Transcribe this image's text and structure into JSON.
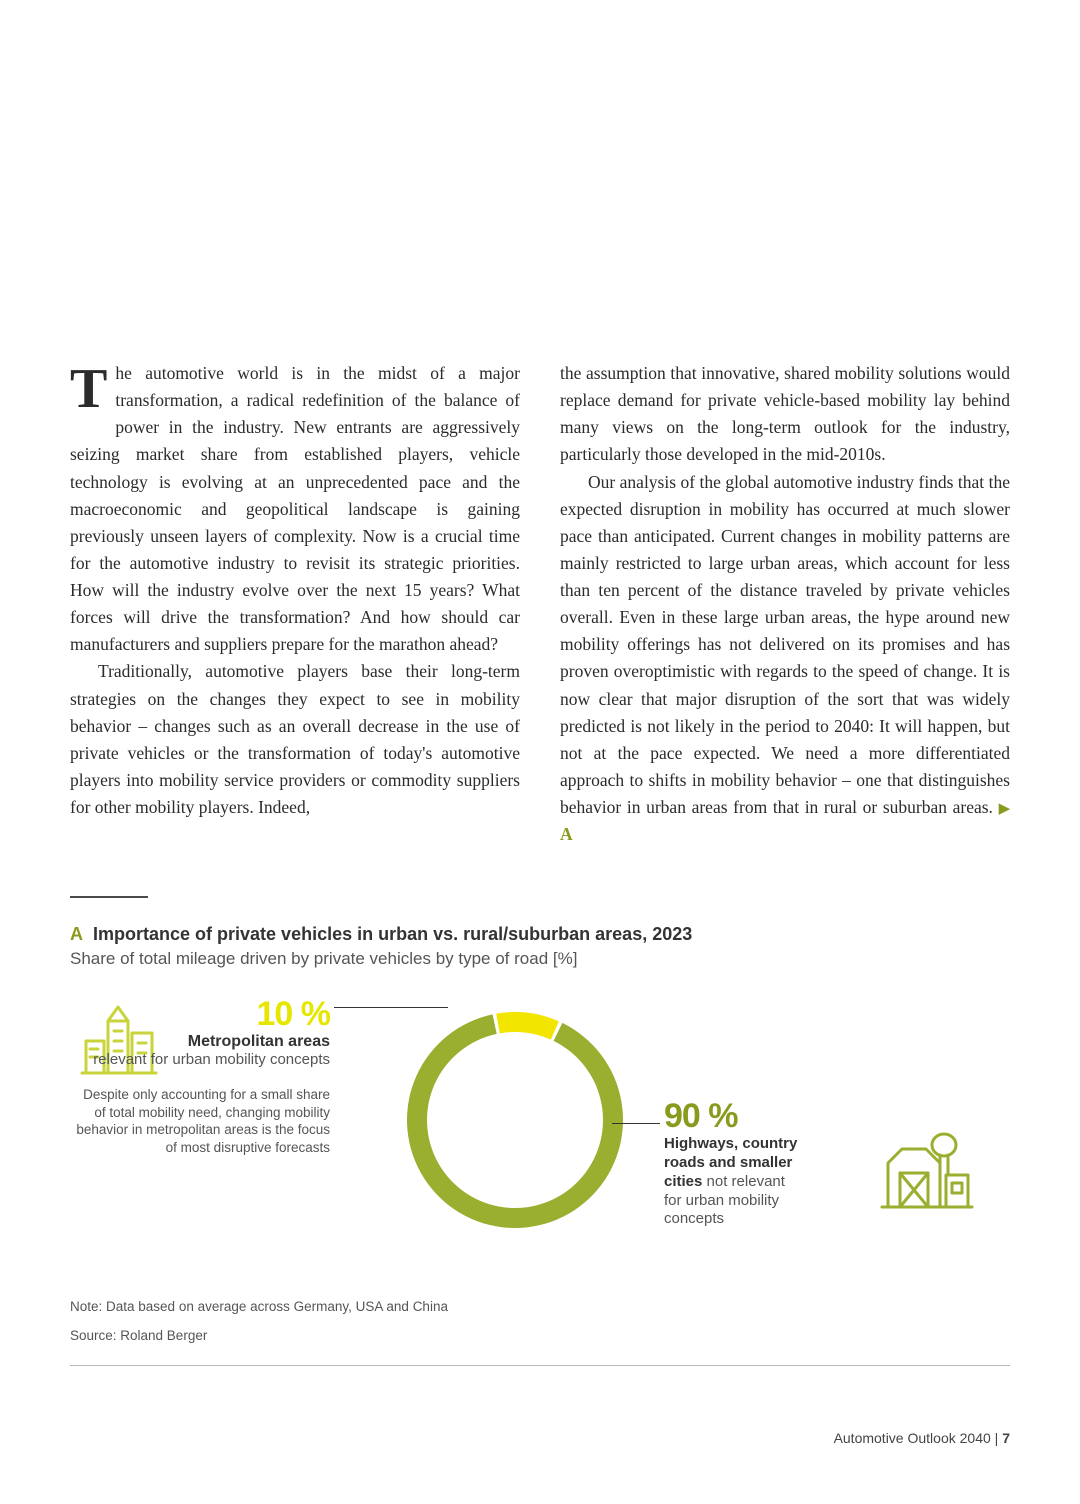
{
  "body": {
    "dropcap": "T",
    "col1_p1": "he automotive world is in the midst of a major transformation, a radical redefinition of the balance of power in the industry. New entrants are aggressively seizing market share from established players, vehicle technology is evolving at an unprecedented pace and the macroeconomic and geopolitical landscape is gaining previously unseen layers of complexity. Now is a crucial time for the automotive industry to revisit its strategic priorities. How will the industry evolve over the next 15 years? What forces will drive the transformation? And how should car manufacturers and suppliers prepare for the marathon ahead?",
    "col1_p2": "Traditionally, automotive players base their long-term strategies on the changes they expect to see in mobility behavior – changes such as an overall decrease in the use of private vehicles or the transformation of today's automotive players into mobility service providers or commodity suppliers for other mobility players. Indeed,",
    "col2_p1": "the assumption that innovative, shared mobility solutions would replace demand for private vehicle-based mobility lay behind many views on the long-term outlook for the industry, particularly those developed in the mid-2010s.",
    "col2_p2_a": "Our analysis of the global automotive industry finds that the expected disruption in mobility has occurred at much slower pace than anticipated. Current changes in mobility patterns are mainly restricted to large urban areas, which account for less than ten percent of the distance traveled by private vehicles overall. Even in these large urban areas, the hype around new mobility offerings has not delivered on its promises and has proven overoptimistic with regards to the speed of change. It is now clear that major disruption of the sort that was widely predicted is not likely in the period to 2040: It will happen, but not at the pace expected. We need a more differentiated approach to shifts in mobility behavior – one that distinguishes behavior in urban areas from that in rural or suburban areas. ",
    "ref_tri": "▶",
    "ref_label": "A"
  },
  "chart": {
    "type": "donut",
    "label_A": "A",
    "title": "Importance of private vehicles in urban vs. rural/suburban areas, 2023",
    "subtitle": "Share of total mileage driven by private vehicles by type of road [%]",
    "segments": [
      {
        "label": "Metropolitan areas",
        "value": 10,
        "color": "#f2e500"
      },
      {
        "label": "Highways, country roads and smaller cities",
        "value": 90,
        "color": "#9aae2f"
      }
    ],
    "left": {
      "pct": "10 %",
      "title": "Metropolitan areas",
      "sub": "relevant for urban mobility concepts",
      "desc": "Despite only accounting for a small share of total mobility need, changing mobility behavior in metropolitan areas is the focus of most disruptive forecasts"
    },
    "right": {
      "pct": "90 %",
      "title_l1": "Highways, country",
      "title_l2": "roads and smaller",
      "title_l3": "cities",
      "sub_l1": "not relevant",
      "sub_l2": "for urban mobility",
      "sub_l3": "concepts"
    },
    "donut": {
      "outer_r": 108,
      "inner_r": 88,
      "start_deg": -100,
      "colors": {
        "metro": "#f2e500",
        "rural": "#9aae2f",
        "gap": "#ffffff"
      },
      "gap_deg": 2
    },
    "icons": {
      "city_stroke": "#c9d43a",
      "barn_stroke": "#9aae2f"
    },
    "note": "Note: Data based on average across Germany, USA and China",
    "source": "Source: Roland Berger"
  },
  "footer": {
    "doc": "Automotive Outlook 2040",
    "sep": " | ",
    "page": "7"
  }
}
